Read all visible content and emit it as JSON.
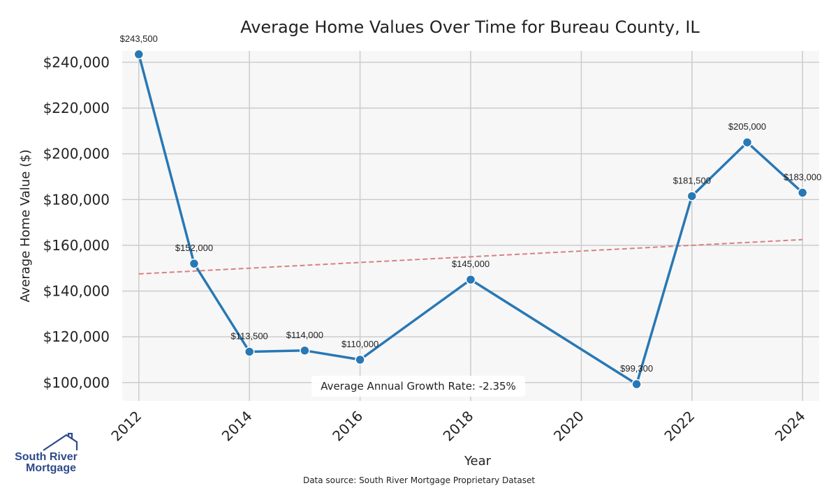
{
  "colors": {
    "line": "#2878b5",
    "trend": "#d98080",
    "plot_bg": "#f7f7f7",
    "grid": "#cccccc",
    "logo": "#2e4a8c"
  },
  "footer": {
    "source": "Data source: South River Mortgage Proprietary Dataset"
  },
  "logo": {
    "line1": "South River",
    "line2": "Mortgage",
    "icon": "house-roof-icon"
  },
  "chart_data": {
    "type": "line",
    "title": "Average Home Values Over Time for Bureau County, IL",
    "xlabel": "Year",
    "ylabel": "Average Home Value ($)",
    "xlim": [
      2011.7,
      2024.3
    ],
    "ylim": [
      92000,
      245000
    ],
    "xticks": [
      2012,
      2014,
      2016,
      2018,
      2020,
      2022,
      2024
    ],
    "yticks": [
      100000,
      120000,
      140000,
      160000,
      180000,
      200000,
      220000,
      240000
    ],
    "ytick_labels": [
      "$100,000",
      "$120,000",
      "$140,000",
      "$160,000",
      "$180,000",
      "$200,000",
      "$220,000",
      "$240,000"
    ],
    "grid": true,
    "series": [
      {
        "name": "Average Home Value",
        "x": [
          2012,
          2013,
          2014,
          2015,
          2016,
          2018,
          2021,
          2022,
          2023,
          2024
        ],
        "values": [
          243500,
          152000,
          113500,
          114000,
          110000,
          145000,
          99300,
          181500,
          205000,
          183000
        ],
        "labels": [
          "$243,500",
          "$152,000",
          "$113,500",
          "$114,000",
          "$110,000",
          "$145,000",
          "$99,300",
          "$181,500",
          "$205,000",
          "$183,000"
        ]
      }
    ],
    "trendline": {
      "x": [
        2012,
        2024
      ],
      "values": [
        147500,
        162500
      ],
      "style": "dashed"
    },
    "annotation": "Average Annual Growth Rate: -2.35%"
  }
}
